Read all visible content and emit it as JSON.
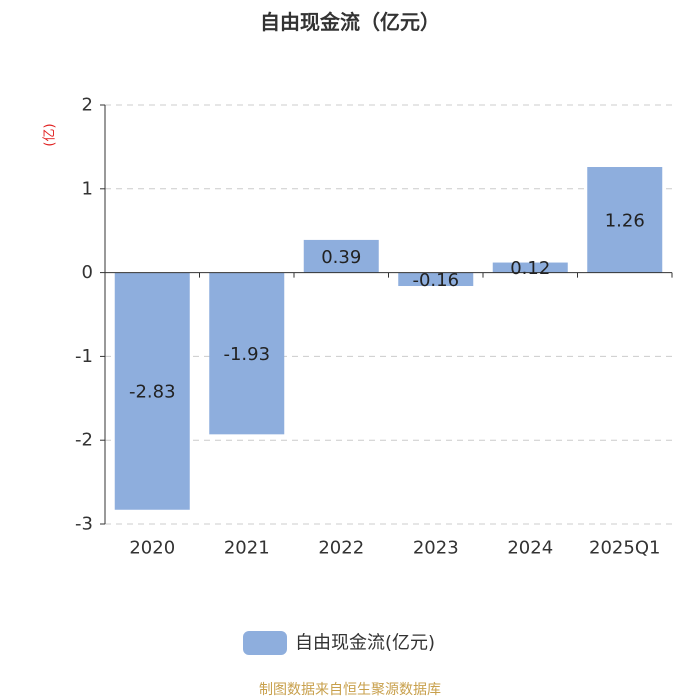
{
  "colors": {
    "bar": "#8eaedd",
    "ylabel": "#e02020",
    "footer": "#c8a04c"
  },
  "chart_data": {
    "type": "bar",
    "title": "自由现金流（亿元）",
    "xlabel": "",
    "ylabel": "(亿)",
    "categories": [
      "2020",
      "2021",
      "2022",
      "2023",
      "2024",
      "2025Q1"
    ],
    "series": [
      {
        "name": "自由现金流(亿元)",
        "values": [
          -2.83,
          -1.93,
          0.39,
          -0.16,
          0.12,
          1.26
        ]
      }
    ],
    "ylim": [
      -3,
      2
    ],
    "yticks": [
      2,
      1,
      0,
      -1,
      -2,
      -3
    ],
    "grid": true,
    "legend": "bottom-center",
    "data_labels": "inside-center"
  },
  "footer": {
    "text": "制图数据来自恒生聚源数据库"
  }
}
